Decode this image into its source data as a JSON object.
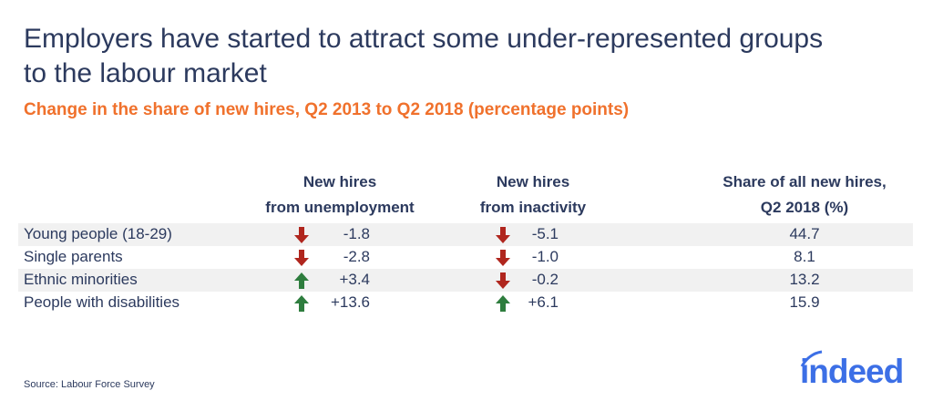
{
  "title_lines": [
    "Employers have started to attract some under-represented groups",
    "to the labour market"
  ],
  "subtitle": "Change in the share of new hires, Q2 2013 to Q2 2018 (percentage points)",
  "headers": [
    [
      "New hires",
      "from unemployment"
    ],
    [
      "New hires",
      "from inactivity"
    ],
    [
      "Share of all new hires,",
      "Q2 2018 (%)"
    ]
  ],
  "rows": [
    {
      "label": "Young people (18-29)",
      "unemp": "-1.8",
      "unemp_dir": "down",
      "inact": "-5.1",
      "inact_dir": "down",
      "share": "44.7"
    },
    {
      "label": "Single parents",
      "unemp": "-2.8",
      "unemp_dir": "down",
      "inact": "-1.0",
      "inact_dir": "down",
      "share": "8.1"
    },
    {
      "label": "Ethnic minorities",
      "unemp": "+3.4",
      "unemp_dir": "up",
      "inact": "-0.2",
      "inact_dir": "down",
      "share": "13.2"
    },
    {
      "label": "People with disabilities",
      "unemp": "+13.6",
      "unemp_dir": "up",
      "inact": "+6.1",
      "inact_dir": "up",
      "share": "15.9"
    }
  ],
  "source": "Source: Labour Force Survey",
  "logo": "indeed",
  "colors": {
    "up": "#2e7d3e",
    "down": "#b0261e",
    "title": "#2c3a5e",
    "subtitle": "#f0712c",
    "brand": "#3c6fe6"
  }
}
